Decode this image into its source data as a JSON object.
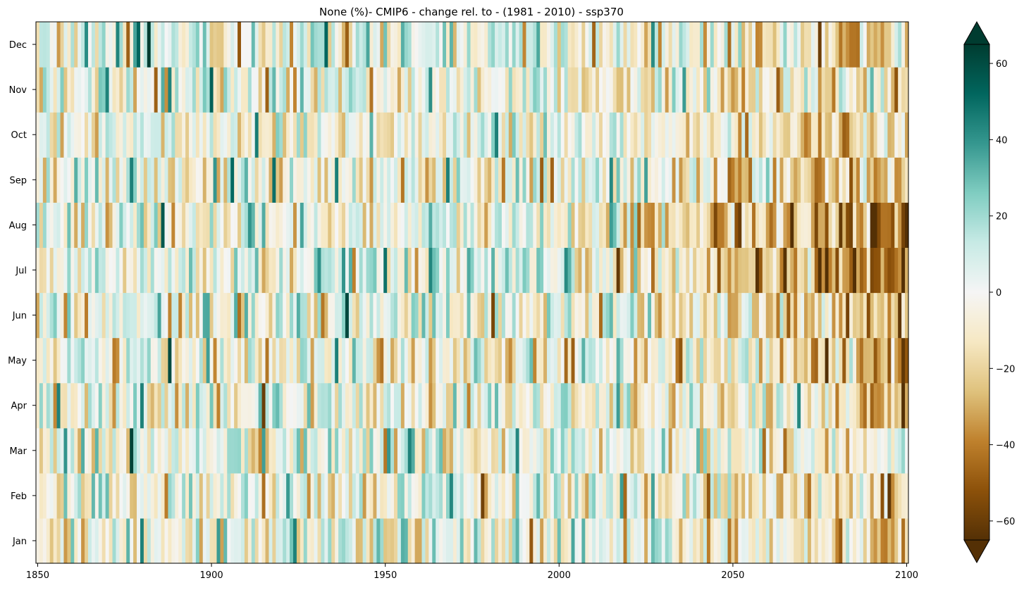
{
  "chart_data": {
    "type": "heatmap",
    "title": "None (%)- CMIP6 - change rel. to - (1981 - 2010) - ssp370",
    "xlabel": "",
    "ylabel": "",
    "x_range": [
      1850,
      2100
    ],
    "x_ticks": [
      1850,
      1900,
      1950,
      2000,
      2050,
      2100
    ],
    "x_tick_labels": [
      "1850",
      "1900",
      "1950",
      "2000",
      "2050",
      "2100"
    ],
    "y_categories": [
      "Jan",
      "Feb",
      "Mar",
      "Apr",
      "May",
      "Jun",
      "Jul",
      "Aug",
      "Sep",
      "Oct",
      "Nov",
      "Dec"
    ],
    "colorbar": {
      "cmap": "BrBG",
      "range": [
        -65,
        65
      ],
      "ticks": [
        -60,
        -40,
        -20,
        0,
        20,
        40,
        60
      ],
      "tick_labels": [
        "−60",
        "−40",
        "−20",
        "0",
        "20",
        "40",
        "60"
      ],
      "extend": "both"
    },
    "grid": false,
    "trend_per_month_end_2100": [
      -20,
      -18,
      -14,
      -24,
      -26,
      -30,
      -46,
      -50,
      -28,
      -22,
      -18,
      -12
    ],
    "variability_sd": 18,
    "note_values": "cell values are a continuous year-by-month field (%), shown only through color"
  }
}
